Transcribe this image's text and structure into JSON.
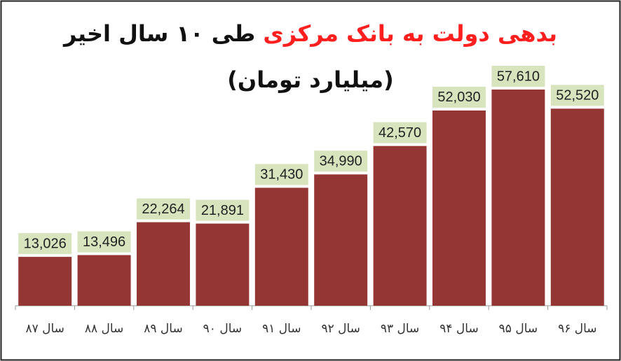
{
  "chart_data": {
    "type": "bar",
    "title": {
      "highlight": "بدهی دولت به بانک مرکزی",
      "rest": "طی ۱۰ سال اخیر"
    },
    "subtitle": "(میلیارد تومان)",
    "categories": [
      "سال ۸۷",
      "سال ۸۸",
      "سال ۸۹",
      "سال ۹۰",
      "سال ۹۱",
      "سال ۹۲",
      "سال ۹۳",
      "سال ۹۴",
      "سال ۹۵",
      "سال ۹۶"
    ],
    "values": [
      13026,
      13496,
      22264,
      21891,
      31430,
      34990,
      42570,
      52030,
      57610,
      52520
    ],
    "value_labels": [
      "13,026",
      "13,496",
      "22,264",
      "21,891",
      "31,430",
      "34,990",
      "42,570",
      "52,030",
      "57,610",
      "52,520"
    ],
    "color": "#943634",
    "label_background": "#d7e4bd",
    "title_highlight_color": "#ff1f1f"
  }
}
